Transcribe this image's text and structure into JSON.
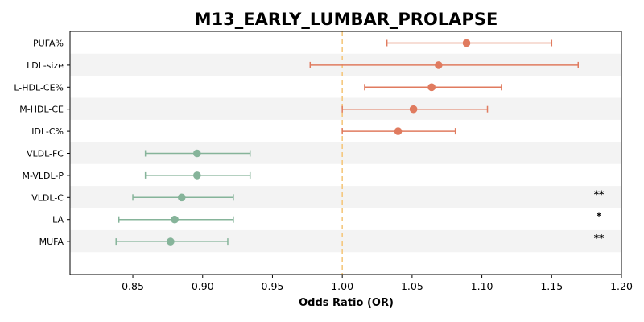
{
  "chart_data": {
    "type": "forest",
    "title": "M13_EARLY_LUMBAR_PROLAPSE",
    "xlabel": "Odds Ratio (OR)",
    "xlim": [
      0.805,
      1.2
    ],
    "xticks": [
      "0.85",
      "0.90",
      "0.95",
      "1.00",
      "1.05",
      "1.10",
      "1.15",
      "1.20"
    ],
    "reference_line": 1.0,
    "colors": {
      "positive": "#e07b5f",
      "negative": "#86b49a",
      "reference": "#f5c77e",
      "band": "#f3f3f3"
    },
    "points": [
      {
        "label": "PUFA%",
        "or": 1.089,
        "lo": 1.032,
        "hi": 1.15,
        "sig": ""
      },
      {
        "label": "LDL-size",
        "or": 1.069,
        "lo": 0.977,
        "hi": 1.169,
        "sig": ""
      },
      {
        "label": "L-HDL-CE%",
        "or": 1.064,
        "lo": 1.016,
        "hi": 1.114,
        "sig": ""
      },
      {
        "label": "M-HDL-CE",
        "or": 1.051,
        "lo": 1.0,
        "hi": 1.104,
        "sig": ""
      },
      {
        "label": "IDL-C%",
        "or": 1.04,
        "lo": 1.0,
        "hi": 1.081,
        "sig": ""
      },
      {
        "label": "VLDL-FC",
        "or": 0.896,
        "lo": 0.859,
        "hi": 0.934,
        "sig": ""
      },
      {
        "label": "M-VLDL-P",
        "or": 0.896,
        "lo": 0.859,
        "hi": 0.934,
        "sig": ""
      },
      {
        "label": "VLDL-C",
        "or": 0.885,
        "lo": 0.85,
        "hi": 0.922,
        "sig": "**"
      },
      {
        "label": "LA",
        "or": 0.88,
        "lo": 0.84,
        "hi": 0.922,
        "sig": "*"
      },
      {
        "label": "MUFA",
        "or": 0.877,
        "lo": 0.838,
        "hi": 0.918,
        "sig": "**"
      }
    ]
  }
}
